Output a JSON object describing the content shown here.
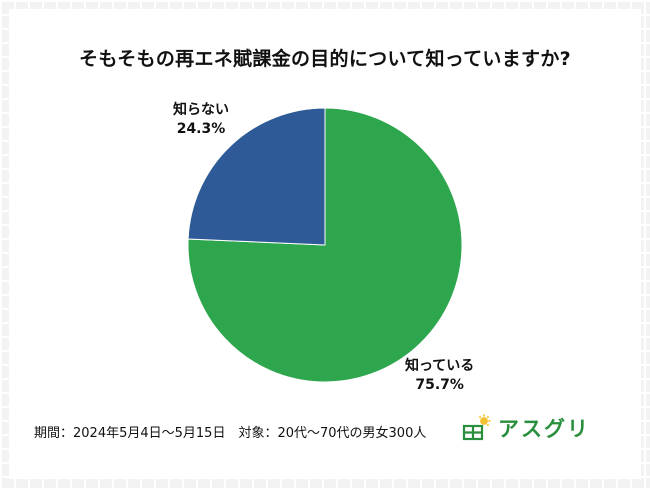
{
  "chart_data": {
    "type": "pie",
    "title": "そもそもの再エネ賦課金の目的について知っていますか?",
    "slices": [
      {
        "label": "知っている",
        "value": 75.7,
        "value_label": "75.7%",
        "color": "#2ea64d"
      },
      {
        "label": "知らない",
        "value": 24.3,
        "value_label": "24.3%",
        "color": "#2e5a97"
      }
    ]
  },
  "footnote": "期間：2024年5月4日～5月15日　対象：20代～70代の男女300人",
  "logo": {
    "text": "アスグリ",
    "icon": "house-sun-icon",
    "color": "#2a8f3c"
  }
}
